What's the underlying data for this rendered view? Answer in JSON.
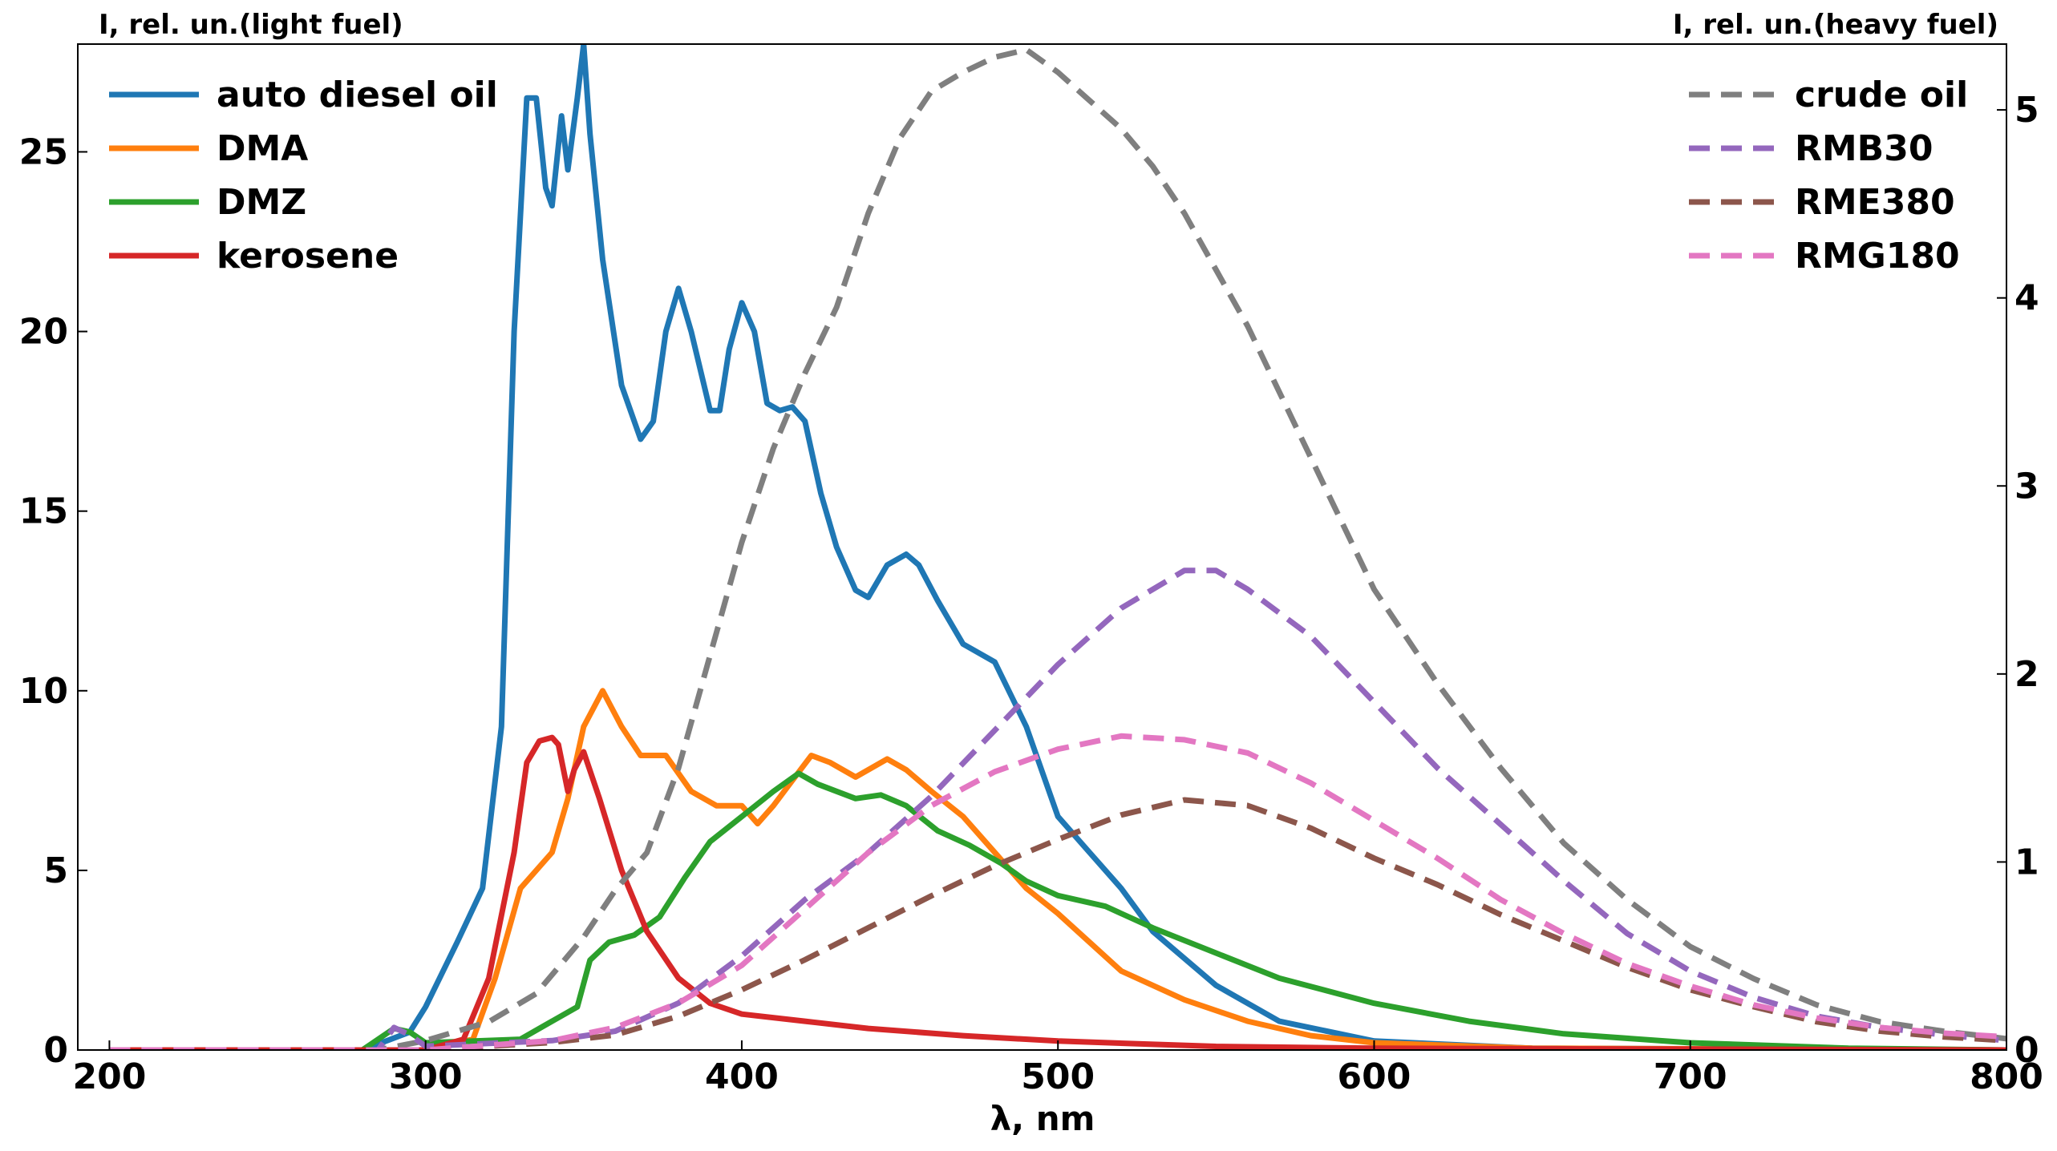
{
  "chart_data": {
    "type": "line",
    "xlabel": "λ, nm",
    "ylabel_left": "I, rel. un.(light fuel)",
    "ylabel_right": "I, rel. un.(heavy fuel)",
    "xlim": [
      190,
      800
    ],
    "ylim_left": [
      0,
      28
    ],
    "ylim_right": [
      0,
      5.35
    ],
    "x_ticks": [
      200,
      300,
      400,
      500,
      600,
      700,
      800
    ],
    "y_ticks_left": [
      0,
      5,
      10,
      15,
      20,
      25
    ],
    "y_ticks_right": [
      0,
      1,
      2,
      3,
      4,
      5
    ],
    "grid": false,
    "legend_left_position": "top-left",
    "legend_right_position": "top-right",
    "series": [
      {
        "name": "auto diesel oil",
        "axis": "left",
        "color": "#1f77b4",
        "style": "solid",
        "points": [
          [
            200,
            0
          ],
          [
            280,
            0
          ],
          [
            295,
            0.5
          ],
          [
            300,
            1.2
          ],
          [
            310,
            3
          ],
          [
            318,
            4.5
          ],
          [
            324,
            9
          ],
          [
            328,
            20
          ],
          [
            332,
            26.5
          ],
          [
            335,
            26.5
          ],
          [
            338,
            24
          ],
          [
            340,
            23.5
          ],
          [
            343,
            26
          ],
          [
            345,
            24.5
          ],
          [
            348,
            26.5
          ],
          [
            350,
            28
          ],
          [
            352,
            25.5
          ],
          [
            356,
            22
          ],
          [
            362,
            18.5
          ],
          [
            368,
            17
          ],
          [
            372,
            17.5
          ],
          [
            376,
            20
          ],
          [
            380,
            21.2
          ],
          [
            384,
            20
          ],
          [
            390,
            17.8
          ],
          [
            393,
            17.8
          ],
          [
            396,
            19.5
          ],
          [
            400,
            20.8
          ],
          [
            404,
            20
          ],
          [
            408,
            18
          ],
          [
            412,
            17.8
          ],
          [
            416,
            17.9
          ],
          [
            420,
            17.5
          ],
          [
            425,
            15.5
          ],
          [
            430,
            14
          ],
          [
            436,
            12.8
          ],
          [
            440,
            12.6
          ],
          [
            446,
            13.5
          ],
          [
            452,
            13.8
          ],
          [
            456,
            13.5
          ],
          [
            462,
            12.5
          ],
          [
            470,
            11.3
          ],
          [
            480,
            10.8
          ],
          [
            490,
            9
          ],
          [
            500,
            6.5
          ],
          [
            510,
            5.5
          ],
          [
            520,
            4.5
          ],
          [
            530,
            3.3
          ],
          [
            550,
            1.8
          ],
          [
            570,
            0.8
          ],
          [
            600,
            0.25
          ],
          [
            650,
            0.05
          ],
          [
            800,
            0
          ]
        ]
      },
      {
        "name": "DMA",
        "axis": "left",
        "color": "#ff7f0e",
        "style": "solid",
        "points": [
          [
            200,
            0
          ],
          [
            300,
            0
          ],
          [
            315,
            0.3
          ],
          [
            322,
            2
          ],
          [
            330,
            4.5
          ],
          [
            340,
            5.5
          ],
          [
            345,
            7
          ],
          [
            350,
            9
          ],
          [
            356,
            10
          ],
          [
            362,
            9
          ],
          [
            368,
            8.2
          ],
          [
            376,
            8.2
          ],
          [
            384,
            7.2
          ],
          [
            392,
            6.8
          ],
          [
            400,
            6.8
          ],
          [
            405,
            6.3
          ],
          [
            410,
            6.8
          ],
          [
            416,
            7.5
          ],
          [
            422,
            8.2
          ],
          [
            428,
            8
          ],
          [
            436,
            7.6
          ],
          [
            446,
            8.1
          ],
          [
            452,
            7.8
          ],
          [
            460,
            7.2
          ],
          [
            470,
            6.5
          ],
          [
            480,
            5.5
          ],
          [
            490,
            4.5
          ],
          [
            500,
            3.8
          ],
          [
            510,
            3
          ],
          [
            520,
            2.2
          ],
          [
            540,
            1.4
          ],
          [
            560,
            0.8
          ],
          [
            580,
            0.4
          ],
          [
            600,
            0.2
          ],
          [
            650,
            0.05
          ],
          [
            800,
            0
          ]
        ]
      },
      {
        "name": "DMZ",
        "axis": "left",
        "color": "#2ca02c",
        "style": "solid",
        "points": [
          [
            200,
            0
          ],
          [
            280,
            0
          ],
          [
            290,
            0.6
          ],
          [
            295,
            0.5
          ],
          [
            300,
            0.2
          ],
          [
            330,
            0.3
          ],
          [
            340,
            0.8
          ],
          [
            348,
            1.2
          ],
          [
            352,
            2.5
          ],
          [
            358,
            3
          ],
          [
            366,
            3.2
          ],
          [
            374,
            3.7
          ],
          [
            382,
            4.8
          ],
          [
            390,
            5.8
          ],
          [
            400,
            6.5
          ],
          [
            410,
            7.2
          ],
          [
            418,
            7.7
          ],
          [
            424,
            7.4
          ],
          [
            430,
            7.2
          ],
          [
            436,
            7
          ],
          [
            444,
            7.1
          ],
          [
            452,
            6.8
          ],
          [
            462,
            6.1
          ],
          [
            472,
            5.7
          ],
          [
            482,
            5.2
          ],
          [
            490,
            4.7
          ],
          [
            500,
            4.3
          ],
          [
            515,
            4
          ],
          [
            530,
            3.4
          ],
          [
            550,
            2.7
          ],
          [
            570,
            2
          ],
          [
            600,
            1.3
          ],
          [
            630,
            0.8
          ],
          [
            660,
            0.45
          ],
          [
            700,
            0.2
          ],
          [
            750,
            0.05
          ],
          [
            800,
            0
          ]
        ]
      },
      {
        "name": "kerosene",
        "axis": "left",
        "color": "#d62728",
        "style": "solid",
        "points": [
          [
            200,
            0
          ],
          [
            300,
            0
          ],
          [
            312,
            0.3
          ],
          [
            320,
            2
          ],
          [
            328,
            5.5
          ],
          [
            332,
            8
          ],
          [
            336,
            8.6
          ],
          [
            340,
            8.7
          ],
          [
            342,
            8.5
          ],
          [
            345,
            7.2
          ],
          [
            347,
            7.8
          ],
          [
            350,
            8.3
          ],
          [
            355,
            7
          ],
          [
            362,
            5
          ],
          [
            370,
            3.3
          ],
          [
            380,
            2
          ],
          [
            390,
            1.3
          ],
          [
            400,
            1
          ],
          [
            420,
            0.8
          ],
          [
            440,
            0.6
          ],
          [
            470,
            0.4
          ],
          [
            500,
            0.25
          ],
          [
            550,
            0.1
          ],
          [
            600,
            0.05
          ],
          [
            800,
            0
          ]
        ]
      },
      {
        "name": "crude oil",
        "axis": "right",
        "color": "#7f7f7f",
        "style": "dashed",
        "points": [
          [
            200,
            0
          ],
          [
            285,
            0
          ],
          [
            300,
            0.05
          ],
          [
            320,
            0.15
          ],
          [
            335,
            0.3
          ],
          [
            350,
            0.6
          ],
          [
            360,
            0.85
          ],
          [
            370,
            1.05
          ],
          [
            380,
            1.5
          ],
          [
            390,
            2.1
          ],
          [
            400,
            2.7
          ],
          [
            410,
            3.2
          ],
          [
            420,
            3.6
          ],
          [
            430,
            3.95
          ],
          [
            440,
            4.45
          ],
          [
            450,
            4.85
          ],
          [
            460,
            5.1
          ],
          [
            470,
            5.2
          ],
          [
            480,
            5.28
          ],
          [
            490,
            5.32
          ],
          [
            500,
            5.2
          ],
          [
            510,
            5.05
          ],
          [
            520,
            4.9
          ],
          [
            530,
            4.7
          ],
          [
            540,
            4.45
          ],
          [
            550,
            4.15
          ],
          [
            560,
            3.85
          ],
          [
            570,
            3.5
          ],
          [
            580,
            3.15
          ],
          [
            590,
            2.8
          ],
          [
            600,
            2.45
          ],
          [
            620,
            1.95
          ],
          [
            640,
            1.5
          ],
          [
            660,
            1.1
          ],
          [
            680,
            0.8
          ],
          [
            700,
            0.55
          ],
          [
            720,
            0.38
          ],
          [
            740,
            0.24
          ],
          [
            760,
            0.15
          ],
          [
            780,
            0.1
          ],
          [
            800,
            0.06
          ]
        ]
      },
      {
        "name": "RMB30",
        "axis": "right",
        "color": "#9467bd",
        "style": "dashed",
        "points": [
          [
            200,
            0
          ],
          [
            285,
            0
          ],
          [
            290,
            0.12
          ],
          [
            295,
            0.08
          ],
          [
            300,
            0.02
          ],
          [
            340,
            0.05
          ],
          [
            360,
            0.1
          ],
          [
            380,
            0.25
          ],
          [
            400,
            0.5
          ],
          [
            420,
            0.8
          ],
          [
            440,
            1.05
          ],
          [
            460,
            1.35
          ],
          [
            480,
            1.7
          ],
          [
            500,
            2.05
          ],
          [
            520,
            2.35
          ],
          [
            540,
            2.55
          ],
          [
            550,
            2.55
          ],
          [
            560,
            2.45
          ],
          [
            580,
            2.2
          ],
          [
            600,
            1.85
          ],
          [
            620,
            1.5
          ],
          [
            640,
            1.2
          ],
          [
            660,
            0.9
          ],
          [
            680,
            0.62
          ],
          [
            700,
            0.42
          ],
          [
            720,
            0.28
          ],
          [
            740,
            0.18
          ],
          [
            760,
            0.12
          ],
          [
            780,
            0.08
          ],
          [
            800,
            0.05
          ]
        ]
      },
      {
        "name": "RME380",
        "axis": "right",
        "color": "#8c564b",
        "style": "dashed",
        "points": [
          [
            200,
            0
          ],
          [
            300,
            0
          ],
          [
            340,
            0.04
          ],
          [
            360,
            0.08
          ],
          [
            380,
            0.18
          ],
          [
            400,
            0.32
          ],
          [
            420,
            0.48
          ],
          [
            440,
            0.65
          ],
          [
            460,
            0.82
          ],
          [
            480,
            0.98
          ],
          [
            500,
            1.12
          ],
          [
            520,
            1.25
          ],
          [
            540,
            1.33
          ],
          [
            560,
            1.3
          ],
          [
            580,
            1.18
          ],
          [
            600,
            1.02
          ],
          [
            620,
            0.88
          ],
          [
            640,
            0.72
          ],
          [
            660,
            0.58
          ],
          [
            680,
            0.44
          ],
          [
            700,
            0.32
          ],
          [
            720,
            0.23
          ],
          [
            740,
            0.15
          ],
          [
            760,
            0.1
          ],
          [
            780,
            0.07
          ],
          [
            800,
            0.05
          ]
        ]
      },
      {
        "name": "RMG180",
        "axis": "right",
        "color": "#e377c2",
        "style": "dashed",
        "points": [
          [
            200,
            0
          ],
          [
            300,
            0
          ],
          [
            340,
            0.05
          ],
          [
            360,
            0.12
          ],
          [
            380,
            0.25
          ],
          [
            400,
            0.45
          ],
          [
            420,
            0.75
          ],
          [
            440,
            1.05
          ],
          [
            460,
            1.3
          ],
          [
            480,
            1.48
          ],
          [
            500,
            1.6
          ],
          [
            520,
            1.67
          ],
          [
            540,
            1.65
          ],
          [
            560,
            1.58
          ],
          [
            580,
            1.42
          ],
          [
            600,
            1.22
          ],
          [
            620,
            1.02
          ],
          [
            640,
            0.8
          ],
          [
            660,
            0.62
          ],
          [
            680,
            0.46
          ],
          [
            700,
            0.34
          ],
          [
            720,
            0.24
          ],
          [
            740,
            0.17
          ],
          [
            760,
            0.12
          ],
          [
            780,
            0.09
          ],
          [
            800,
            0.07
          ]
        ]
      }
    ]
  }
}
